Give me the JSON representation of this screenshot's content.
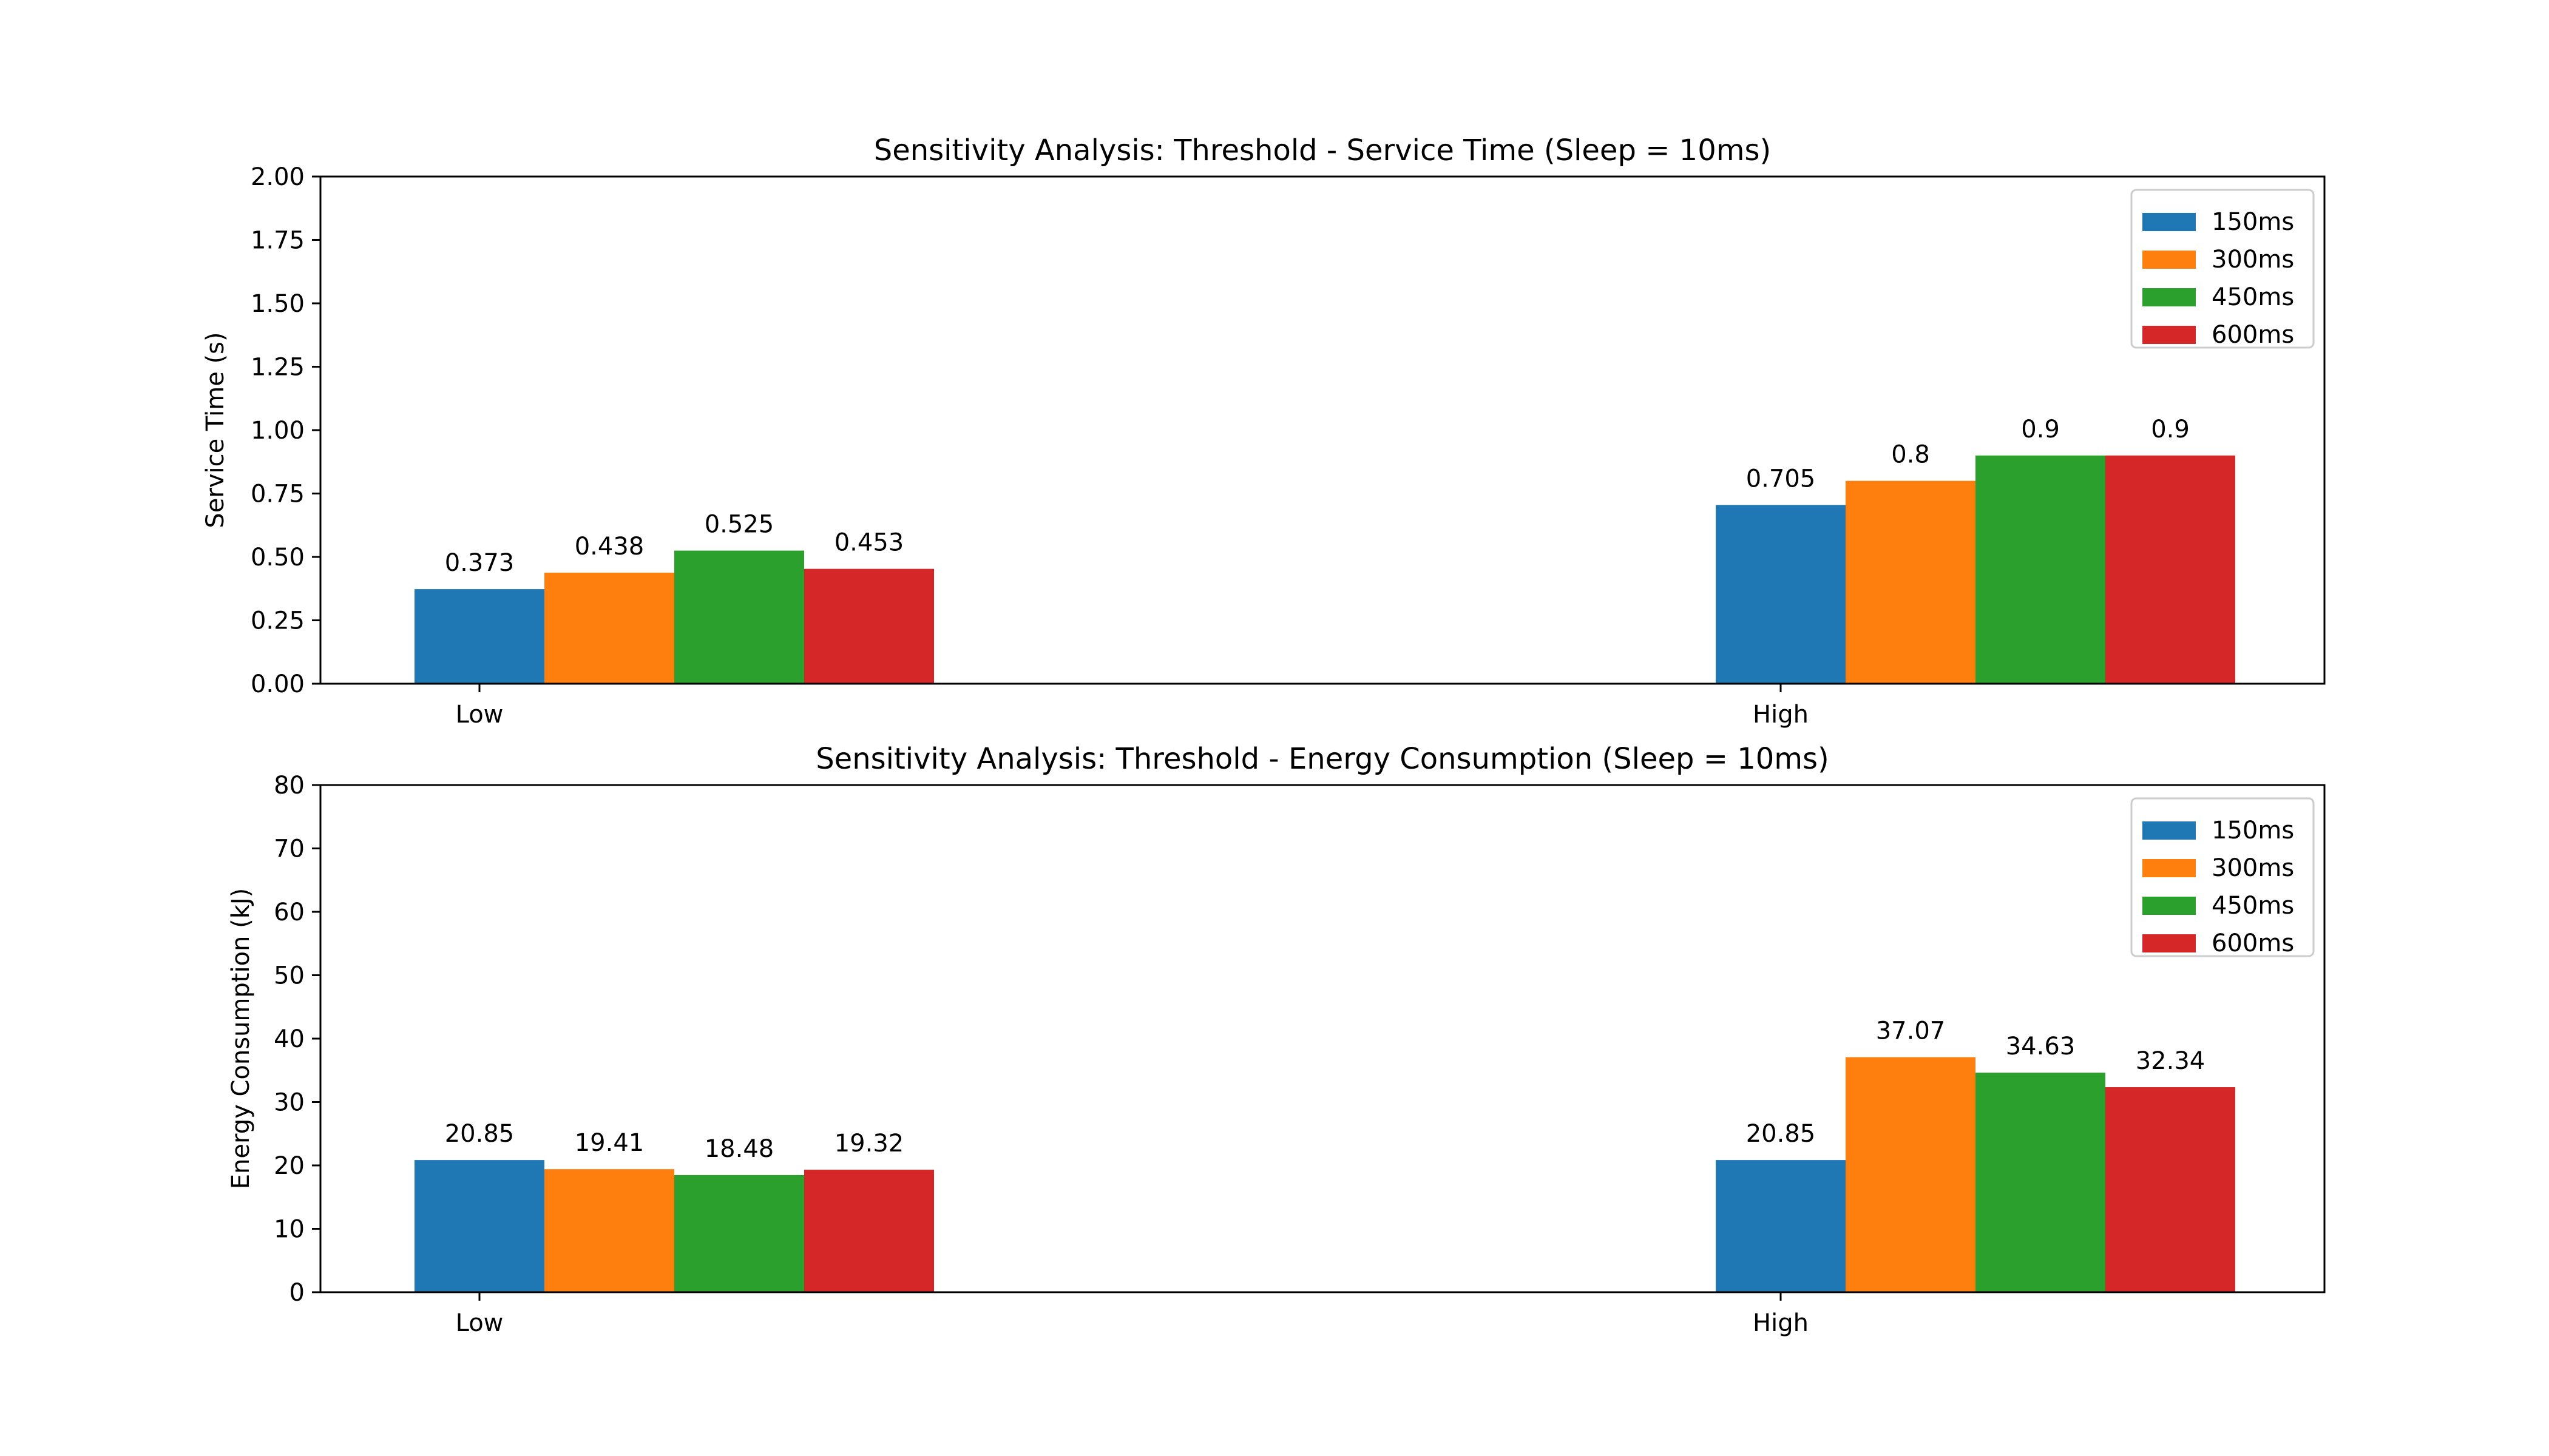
{
  "chart_data": [
    {
      "type": "bar",
      "title": "Sensitivity Analysis: Threshold - Service Time (Sleep = 10ms)",
      "xlabel": "",
      "ylabel": "Service Time (s)",
      "ylim": [
        0,
        2.0
      ],
      "yticks": [
        0.0,
        0.25,
        0.5,
        0.75,
        1.0,
        1.25,
        1.5,
        1.75,
        2.0
      ],
      "ytick_labels": [
        "0.00",
        "0.25",
        "0.50",
        "0.75",
        "1.00",
        "1.25",
        "1.50",
        "1.75",
        "2.00"
      ],
      "categories": [
        "Low",
        "High"
      ],
      "legend_position": "top-right",
      "grid": false,
      "series": [
        {
          "name": "150ms",
          "color": "#1f77b4",
          "values": [
            0.373,
            0.705
          ],
          "labels": [
            "0.373",
            "0.705"
          ]
        },
        {
          "name": "300ms",
          "color": "#ff7f0e",
          "values": [
            0.438,
            0.8
          ],
          "labels": [
            "0.438",
            "0.8"
          ]
        },
        {
          "name": "450ms",
          "color": "#2ca02c",
          "values": [
            0.525,
            0.9
          ],
          "labels": [
            "0.525",
            "0.9"
          ]
        },
        {
          "name": "600ms",
          "color": "#d62728",
          "values": [
            0.453,
            0.9
          ],
          "labels": [
            "0.453",
            "0.9"
          ]
        }
      ]
    },
    {
      "type": "bar",
      "title": "Sensitivity Analysis: Threshold - Energy Consumption (Sleep = 10ms)",
      "xlabel": "",
      "ylabel": "Energy Consumption (kJ)",
      "ylim": [
        0,
        80
      ],
      "yticks": [
        0,
        10,
        20,
        30,
        40,
        50,
        60,
        70,
        80
      ],
      "ytick_labels": [
        "0",
        "10",
        "20",
        "30",
        "40",
        "50",
        "60",
        "70",
        "80"
      ],
      "categories": [
        "Low",
        "High"
      ],
      "legend_position": "top-right",
      "grid": false,
      "series": [
        {
          "name": "150ms",
          "color": "#1f77b4",
          "values": [
            20.85,
            20.85
          ],
          "labels": [
            "20.85",
            "20.85"
          ]
        },
        {
          "name": "300ms",
          "color": "#ff7f0e",
          "values": [
            19.41,
            37.07
          ],
          "labels": [
            "19.41",
            "37.07"
          ]
        },
        {
          "name": "450ms",
          "color": "#2ca02c",
          "values": [
            18.48,
            34.63
          ],
          "labels": [
            "18.48",
            "34.63"
          ]
        },
        {
          "name": "600ms",
          "color": "#d62728",
          "values": [
            19.32,
            32.34
          ],
          "labels": [
            "19.32",
            "32.34"
          ]
        }
      ]
    }
  ]
}
